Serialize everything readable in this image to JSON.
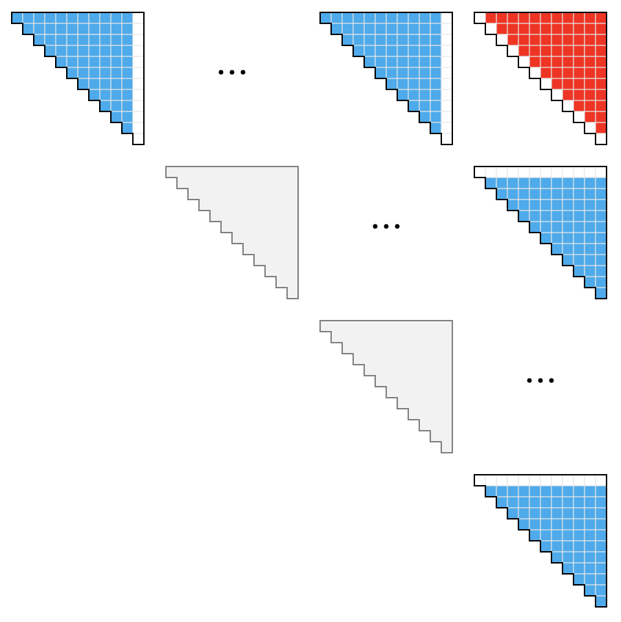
{
  "colors": {
    "blue": "#4eaaea",
    "red": "#ee3524",
    "empty": "#ffffff",
    "gray_fill": "#f2f2f2",
    "grid_line": "#e6e6e6",
    "outline": "#000000",
    "gray_outline": "#808080",
    "ellipsis": "#000000"
  },
  "grid": {
    "rows": 4,
    "cols": 4
  },
  "blocks": [
    {
      "row": 0,
      "col": 0,
      "variant": "blue",
      "cells": 12,
      "white_edge": "right_column"
    },
    {
      "row": 0,
      "col": 2,
      "variant": "blue",
      "cells": 12,
      "white_edge": "right_column"
    },
    {
      "row": 0,
      "col": 3,
      "variant": "red",
      "cells": 12,
      "white_edge": "diagonal"
    },
    {
      "row": 1,
      "col": 1,
      "variant": "gray",
      "cells": 12,
      "white_edge": "none"
    },
    {
      "row": 1,
      "col": 3,
      "variant": "blue",
      "cells": 12,
      "white_edge": "top_row"
    },
    {
      "row": 2,
      "col": 2,
      "variant": "gray",
      "cells": 12,
      "white_edge": "none"
    },
    {
      "row": 3,
      "col": 3,
      "variant": "blue",
      "cells": 12,
      "white_edge": "top_row"
    }
  ],
  "ellipses": [
    {
      "row": 0,
      "col": 1
    },
    {
      "row": 1,
      "col": 2
    },
    {
      "row": 2,
      "col": 3
    }
  ]
}
